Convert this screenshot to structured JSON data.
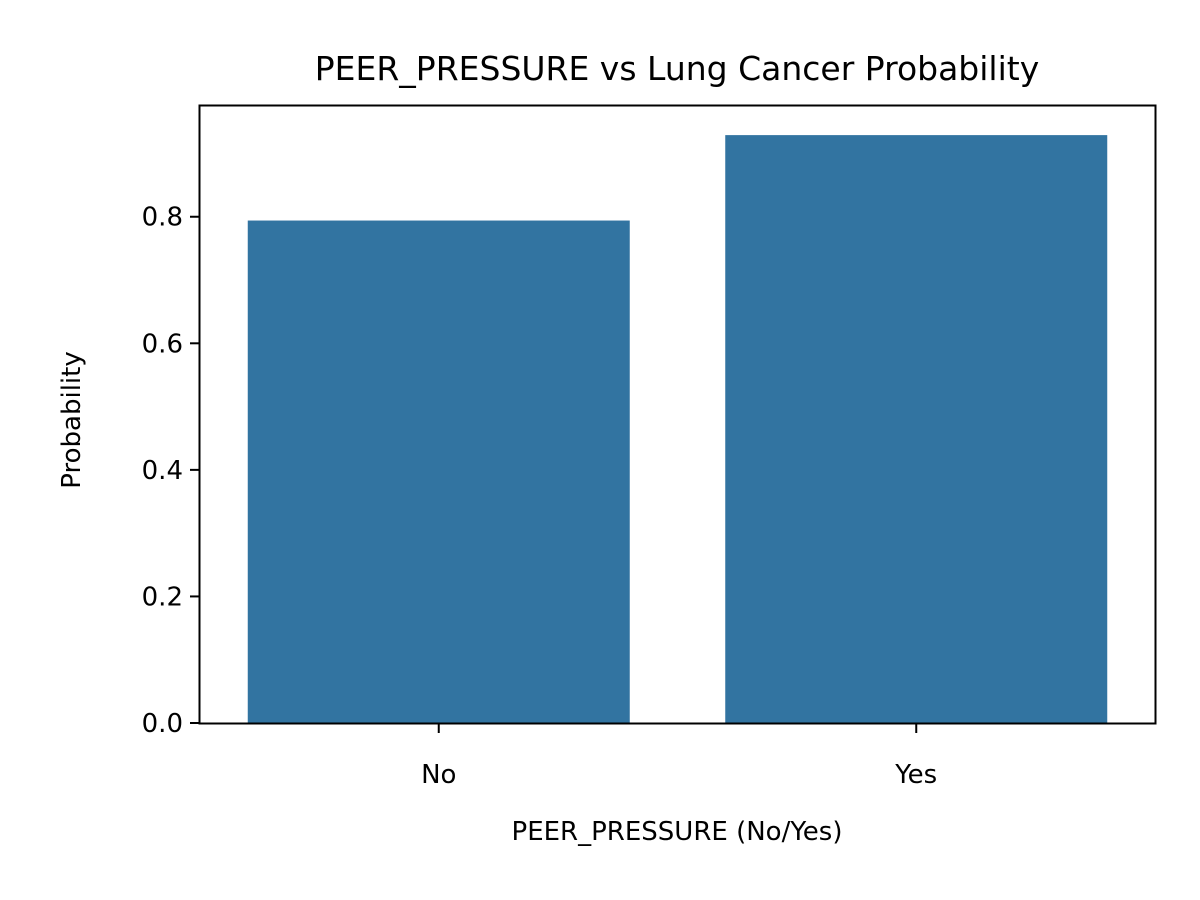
{
  "chart_data": {
    "type": "bar",
    "title": "PEER_PRESSURE vs Lung Cancer Probability",
    "xlabel": "PEER_PRESSURE (No/Yes)",
    "ylabel": "Probability",
    "categories": [
      "No",
      "Yes"
    ],
    "values": [
      0.794,
      0.929
    ],
    "ylim": [
      0,
      0.975
    ],
    "yticks": [
      0.0,
      0.2,
      0.4,
      0.6,
      0.8
    ],
    "ytick_labels": [
      "0.0",
      "0.2",
      "0.4",
      "0.6",
      "0.8"
    ],
    "grid": false,
    "legend": "none",
    "bar_color": "#3274a1"
  }
}
